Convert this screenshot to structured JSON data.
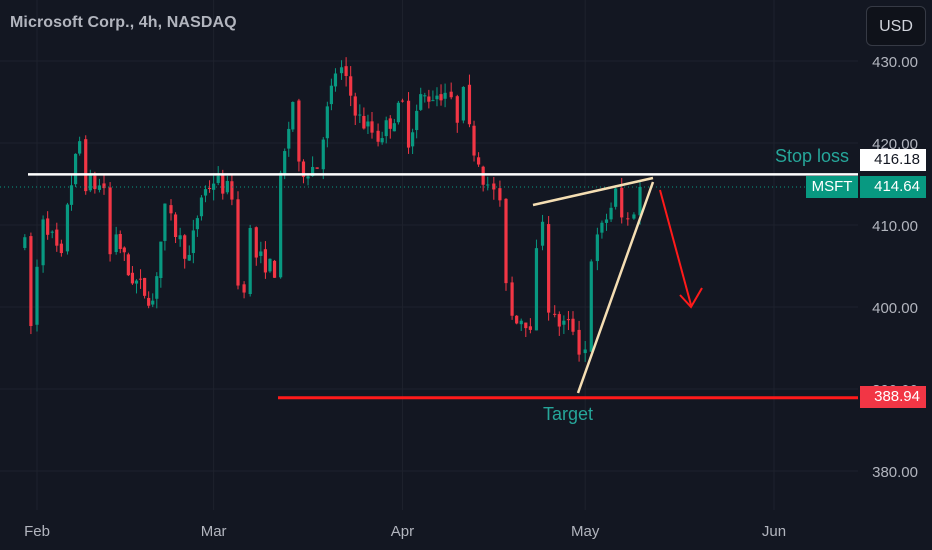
{
  "header": {
    "title": "Microsoft Corp., 4h, NASDAQ",
    "currency_button": "USD"
  },
  "annotations": {
    "stop_loss_label": "Stop loss",
    "stop_loss_value": "416.18",
    "symbol": "MSFT",
    "last_price": "414.64",
    "target_label": "Target",
    "target_value": "388.94"
  },
  "colors": {
    "background": "#131722",
    "up": "#089981",
    "down": "#f23645",
    "grid": "#1e222d",
    "axis_text": "#b2b5be",
    "wedge": "#f5deb3",
    "stop_line": "#ffffff",
    "target_line": "#ff1a1a"
  },
  "chart_data": {
    "type": "candlestick",
    "y_axis": {
      "ticks": [
        "430.00",
        "420.00",
        "410.00",
        "400.00",
        "390.00",
        "380.00"
      ],
      "range": [
        377,
        434
      ]
    },
    "x_axis": {
      "ticks": [
        "Feb",
        "Mar",
        "Apr",
        "May",
        "Jun"
      ]
    },
    "levels": {
      "stop_loss": 416.18,
      "last_price": 414.64,
      "target": 388.94
    },
    "anchors": [
      {
        "date": "Jan 30",
        "close": 407.5
      },
      {
        "date": "Jan 31",
        "close": 397.6
      },
      {
        "date": "Feb 01",
        "close": 404.8
      },
      {
        "date": "Feb 02",
        "close": 411.3
      },
      {
        "date": "Feb 05",
        "close": 405.6
      },
      {
        "date": "Feb 06",
        "close": 412.9
      },
      {
        "date": "Feb 08",
        "close": 420.2
      },
      {
        "date": "Feb 09",
        "close": 415.2
      },
      {
        "date": "Feb 12",
        "close": 414.6
      },
      {
        "date": "Feb 13",
        "close": 406.4
      },
      {
        "date": "Feb 14",
        "close": 409.1
      },
      {
        "date": "Feb 16",
        "close": 404.1
      },
      {
        "date": "Feb 20",
        "close": 400.8
      },
      {
        "date": "Feb 22",
        "close": 411.6
      },
      {
        "date": "Feb 23",
        "close": 410.3
      },
      {
        "date": "Feb 26",
        "close": 405.9
      },
      {
        "date": "Feb 28",
        "close": 413.6
      },
      {
        "date": "Mar 01",
        "close": 415.5
      },
      {
        "date": "Mar 04",
        "close": 413.9
      },
      {
        "date": "Mar 05",
        "close": 402.6
      },
      {
        "date": "Mar 06",
        "close": 402.9
      },
      {
        "date": "Mar 07",
        "close": 409.1
      },
      {
        "date": "Mar 08",
        "close": 406.2
      },
      {
        "date": "Mar 11",
        "close": 404.5
      },
      {
        "date": "Mar 12",
        "close": 415.3
      },
      {
        "date": "Mar 14",
        "close": 425.2
      },
      {
        "date": "Mar 15",
        "close": 416.6
      },
      {
        "date": "Mar 18",
        "close": 417.3
      },
      {
        "date": "Mar 19",
        "close": 421.4
      },
      {
        "date": "Mar 21",
        "close": 428.7
      },
      {
        "date": "Mar 22",
        "close": 428.7
      },
      {
        "date": "Mar 25",
        "close": 422.9
      },
      {
        "date": "Mar 27",
        "close": 421.4
      },
      {
        "date": "Mar 28",
        "close": 420.7
      },
      {
        "date": "Apr 01",
        "close": 424.6
      },
      {
        "date": "Apr 02",
        "close": 420.6
      },
      {
        "date": "Apr 04",
        "close": 425.4
      },
      {
        "date": "Apr 08",
        "close": 426.3
      },
      {
        "date": "Apr 09",
        "close": 424.6
      },
      {
        "date": "Apr 10",
        "close": 423.3
      },
      {
        "date": "Apr 11",
        "close": 427.9
      },
      {
        "date": "Apr 12",
        "close": 421.4
      },
      {
        "date": "Apr 15",
        "close": 414.2
      },
      {
        "date": "Apr 16",
        "close": 414.6
      },
      {
        "date": "Apr 17",
        "close": 411.9
      },
      {
        "date": "Apr 18",
        "close": 403.7
      },
      {
        "date": "Apr 19",
        "close": 399.1
      },
      {
        "date": "Apr 22",
        "close": 398.3
      },
      {
        "date": "Apr 23",
        "close": 406.2
      },
      {
        "date": "Apr 24",
        "close": 411.1
      },
      {
        "date": "Apr 25",
        "close": 400.1
      },
      {
        "date": "Apr 26",
        "close": 398.3
      },
      {
        "date": "Apr 29",
        "close": 397.5
      },
      {
        "date": "Apr 30",
        "close": 395.0
      },
      {
        "date": "May 01",
        "close": 394.9
      },
      {
        "date": "May 02",
        "close": 406.2
      },
      {
        "date": "May 03",
        "close": 408.1
      },
      {
        "date": "May 06",
        "close": 413.8
      },
      {
        "date": "May 07",
        "close": 410.8
      },
      {
        "date": "May 08",
        "close": 410.5
      },
      {
        "date": "May 09",
        "close": 412.1
      },
      {
        "date": "May 10",
        "close": 414.6
      }
    ]
  }
}
